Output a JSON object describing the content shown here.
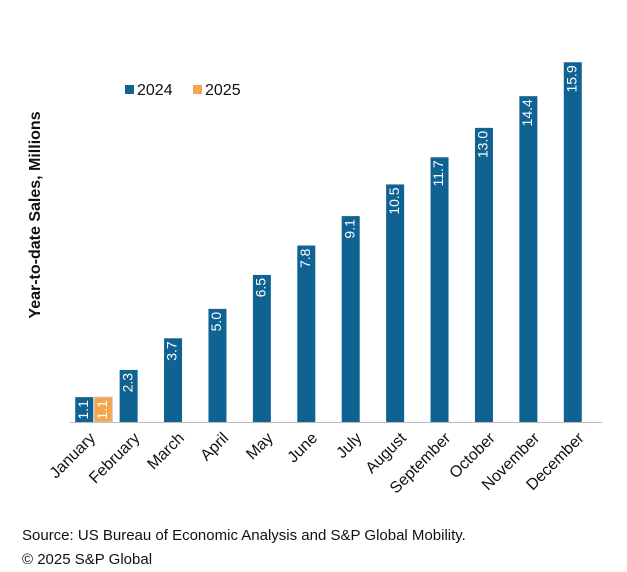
{
  "chart_data": {
    "type": "bar",
    "y_label": "Year-to-date Sales, Millions",
    "categories": [
      "January",
      "February",
      "March",
      "April",
      "May",
      "June",
      "July",
      "August",
      "September",
      "October",
      "November",
      "December"
    ],
    "series": [
      {
        "name": "2024",
        "color": "#0f6291",
        "values": [
          1.1,
          2.3,
          3.7,
          5.0,
          6.5,
          7.8,
          9.1,
          10.5,
          11.7,
          13.0,
          14.4,
          15.9
        ],
        "value_labels": [
          "1.1",
          "2.3",
          "3.7",
          "5.0",
          "6.5",
          "7.8",
          "9.1",
          "10.5",
          "11.7",
          "13.0",
          "14.4",
          "15.9"
        ]
      },
      {
        "name": "2025",
        "color": "#f5a64b",
        "values": [
          1.1,
          null,
          null,
          null,
          null,
          null,
          null,
          null,
          null,
          null,
          null,
          null
        ],
        "value_labels": [
          "1.1",
          null,
          null,
          null,
          null,
          null,
          null,
          null,
          null,
          null,
          null,
          null
        ]
      }
    ],
    "ylim": [
      0,
      16
    ],
    "legend": "top-left",
    "source": "Source: US Bureau of Economic Analysis and S&P Global Mobility.",
    "copyright": "© 2025 S&P Global"
  }
}
